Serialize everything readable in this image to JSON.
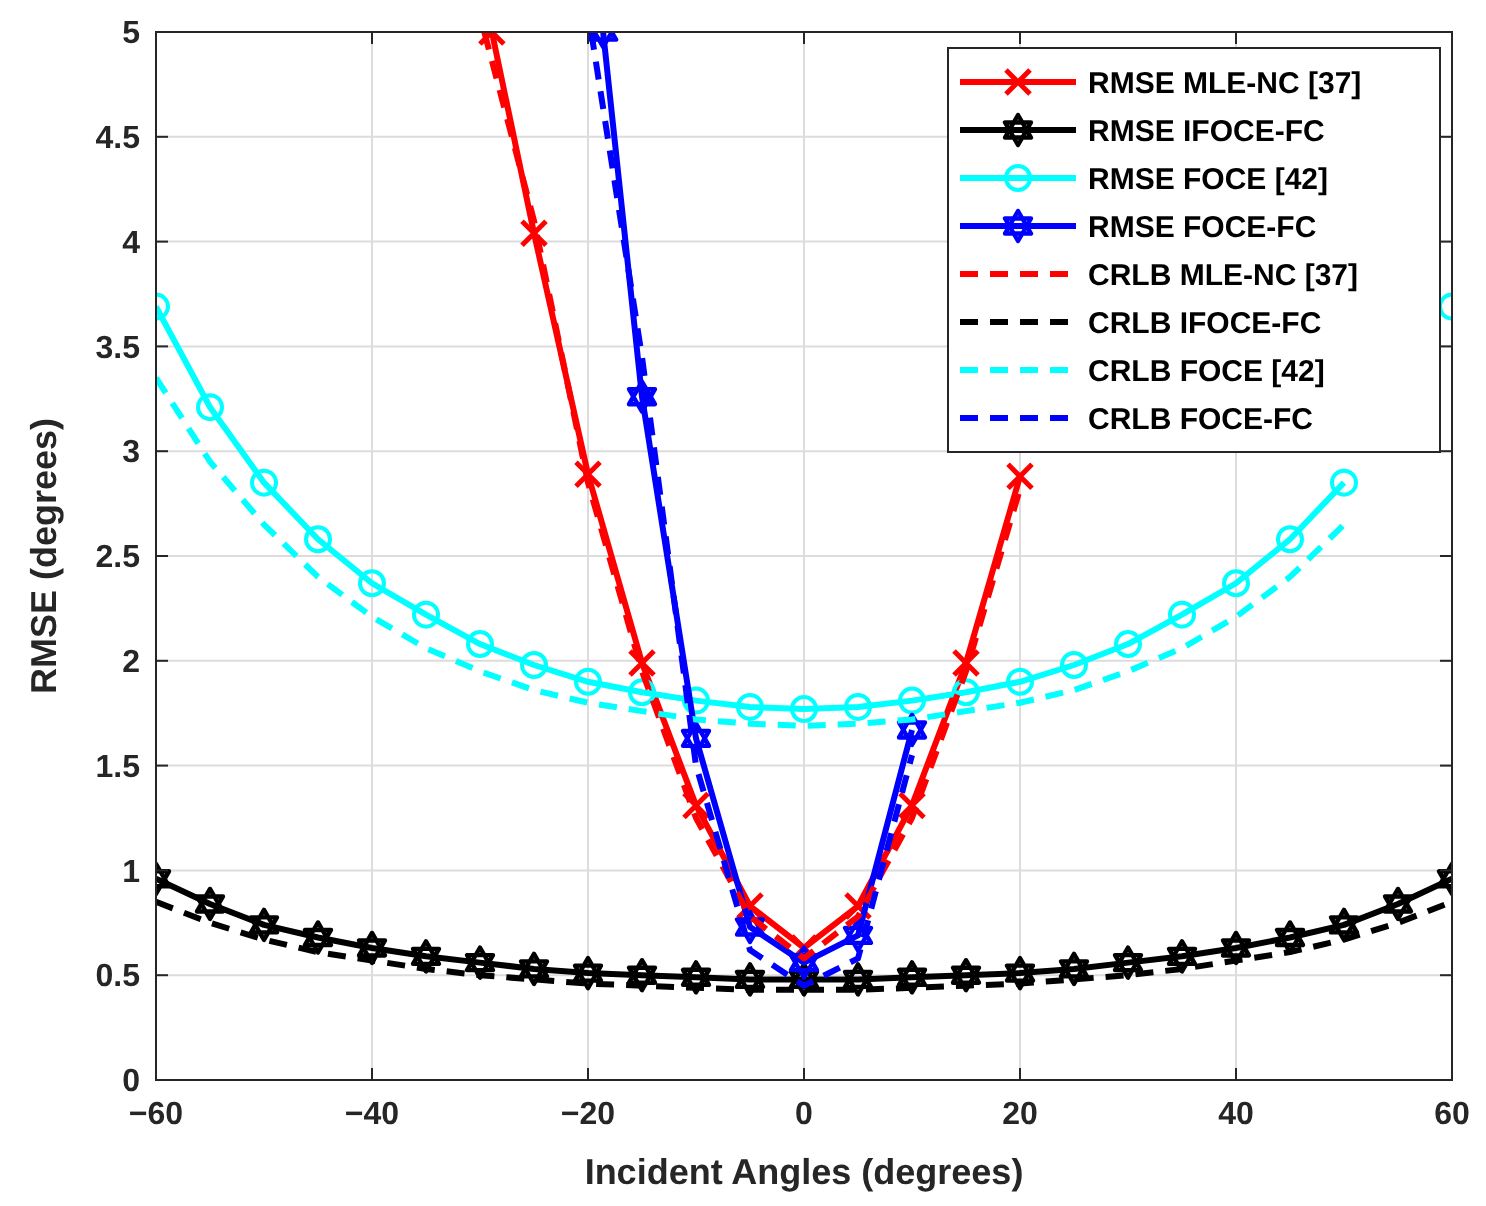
{
  "chart_data": {
    "type": "line",
    "xlabel": "Incident Angles (degrees)",
    "ylabel": "RMSE (degrees)",
    "xlim": [
      -60,
      60
    ],
    "ylim": [
      0,
      5
    ],
    "xticks": [
      {
        "value": -60,
        "label": "−60"
      },
      {
        "value": -40,
        "label": "−40"
      },
      {
        "value": -20,
        "label": "−20"
      },
      0,
      20,
      40,
      60
    ],
    "yticks": [
      0,
      0.5,
      1,
      1.5,
      2,
      2.5,
      3,
      3.5,
      4,
      4.5,
      5
    ],
    "grid": true,
    "legend": "top right",
    "x": [
      -60,
      -55,
      -50,
      -45,
      -40,
      -35,
      -30,
      -25,
      -20,
      -15,
      -10,
      -5,
      0,
      5,
      10,
      15,
      20,
      25,
      30,
      35,
      40,
      45,
      50,
      55,
      60
    ],
    "series": [
      {
        "name": "RMSE MLE-NC [37]",
        "color": "#ff0000",
        "marker": "cross",
        "line_style": "solid",
        "x": [
          -28.9,
          -25,
          -20,
          -15,
          -10,
          -5,
          0,
          5,
          10,
          15,
          20
        ],
        "values": [
          5,
          4.04,
          2.89,
          1.99,
          1.31,
          0.83,
          0.63,
          0.83,
          1.31,
          1.99,
          2.88
        ]
      },
      {
        "name": "RMSE IFOCE-FC",
        "color": "#000000",
        "marker": "star",
        "line_style": "solid",
        "values": [
          0.96,
          0.84,
          0.74,
          0.68,
          0.63,
          0.59,
          0.56,
          0.53,
          0.51,
          0.5,
          0.49,
          0.48,
          0.48,
          0.48,
          0.49,
          0.5,
          0.51,
          0.53,
          0.56,
          0.59,
          0.63,
          0.68,
          0.74,
          0.84,
          0.96
        ]
      },
      {
        "name": "RMSE FOCE [42]",
        "color": "#00ffff",
        "marker": "circle",
        "line_style": "solid",
        "values": [
          3.69,
          3.21,
          2.85,
          2.58,
          2.37,
          2.22,
          2.08,
          1.98,
          1.9,
          1.85,
          1.81,
          1.78,
          1.77,
          1.78,
          1.81,
          1.85,
          1.9,
          1.98,
          2.08,
          2.22,
          2.37,
          2.58,
          2.85,
          null,
          3.69
        ]
      },
      {
        "name": "RMSE FOCE-FC",
        "color": "#0000ff",
        "marker": "star",
        "line_style": "solid",
        "x": [
          -18.6,
          -15,
          -10,
          -5,
          0,
          5,
          10
        ],
        "values": [
          5,
          3.26,
          1.63,
          0.73,
          0.56,
          0.69,
          1.67
        ]
      },
      {
        "name": "CRLB MLE-NC [37]",
        "color": "#ff0000",
        "marker": "none",
        "line_style": "dashed",
        "x": [
          -29.6,
          -25,
          -20,
          -15,
          -10,
          -5,
          0,
          5,
          10,
          15,
          20
        ],
        "values": [
          5,
          4.1,
          2.85,
          1.95,
          1.25,
          0.78,
          0.58,
          0.78,
          1.25,
          1.95,
          2.82
        ]
      },
      {
        "name": "CRLB IFOCE-FC",
        "color": "#000000",
        "marker": "none",
        "line_style": "dashed",
        "values": [
          0.85,
          0.75,
          0.67,
          0.61,
          0.57,
          0.53,
          0.5,
          0.48,
          0.46,
          0.45,
          0.44,
          0.43,
          0.43,
          0.43,
          0.44,
          0.45,
          0.46,
          0.48,
          0.5,
          0.53,
          0.57,
          0.61,
          0.67,
          0.75,
          0.85
        ]
      },
      {
        "name": "CRLB FOCE [42]",
        "color": "#00ffff",
        "marker": "none",
        "line_style": "dashed",
        "values": [
          3.35,
          2.95,
          2.65,
          2.4,
          2.21,
          2.06,
          1.95,
          1.86,
          1.8,
          1.76,
          1.72,
          1.7,
          1.69,
          1.7,
          1.72,
          1.76,
          1.8,
          1.86,
          1.95,
          2.06,
          2.21,
          2.4,
          2.65,
          null,
          null
        ]
      },
      {
        "name": "CRLB FOCE-FC",
        "color": "#0000ff",
        "marker": "none",
        "line_style": "dashed",
        "x": [
          -19.7,
          -15,
          -10,
          -5,
          0,
          5,
          10
        ],
        "values": [
          5,
          3.45,
          1.5,
          0.62,
          0.45,
          0.58,
          1.55
        ]
      }
    ]
  }
}
